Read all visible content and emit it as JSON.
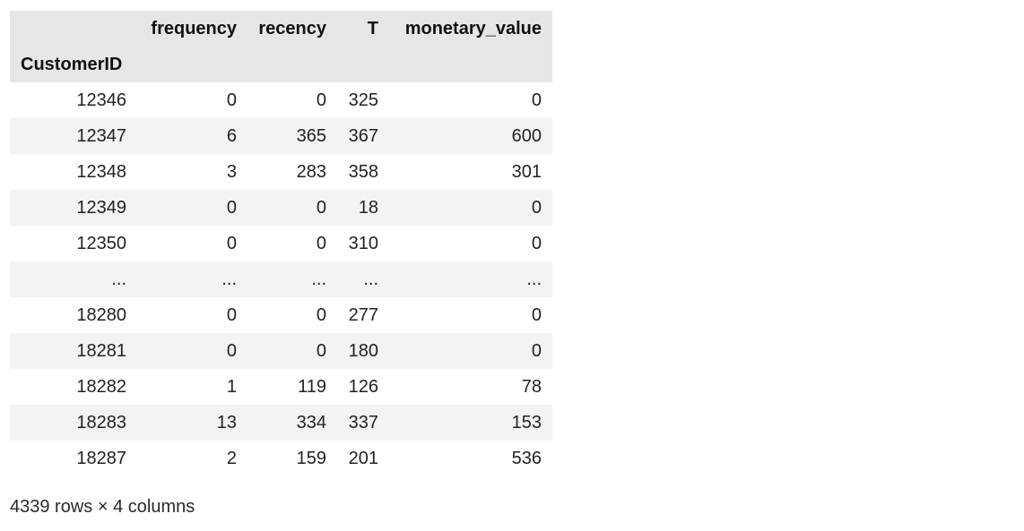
{
  "table": {
    "columns": [
      "frequency",
      "recency",
      "T",
      "monetary_value"
    ],
    "index_name": "CustomerID",
    "rows": [
      {
        "index": "12346",
        "values": [
          "0",
          "0",
          "325",
          "0"
        ]
      },
      {
        "index": "12347",
        "values": [
          "6",
          "365",
          "367",
          "600"
        ]
      },
      {
        "index": "12348",
        "values": [
          "3",
          "283",
          "358",
          "301"
        ]
      },
      {
        "index": "12349",
        "values": [
          "0",
          "0",
          "18",
          "0"
        ]
      },
      {
        "index": "12350",
        "values": [
          "0",
          "0",
          "310",
          "0"
        ]
      },
      {
        "index": "...",
        "values": [
          "...",
          "...",
          "...",
          "..."
        ]
      },
      {
        "index": "18280",
        "values": [
          "0",
          "0",
          "277",
          "0"
        ]
      },
      {
        "index": "18281",
        "values": [
          "0",
          "0",
          "180",
          "0"
        ]
      },
      {
        "index": "18282",
        "values": [
          "1",
          "119",
          "126",
          "78"
        ]
      },
      {
        "index": "18283",
        "values": [
          "13",
          "334",
          "337",
          "153"
        ]
      },
      {
        "index": "18287",
        "values": [
          "2",
          "159",
          "201",
          "536"
        ]
      }
    ]
  },
  "shape_note": "4339 rows × 4 columns"
}
